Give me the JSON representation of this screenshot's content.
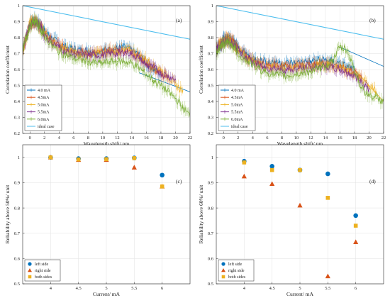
{
  "chart_data": [
    {
      "type": "line",
      "panel": "(a)",
      "xlabel": "Wavelength shift/ nm",
      "ylabel": "Correlation coefficient",
      "xlim": [
        -1,
        22
      ],
      "ylim": [
        0.2,
        1.0
      ],
      "xticks": [
        0,
        2,
        4,
        6,
        8,
        10,
        12,
        14,
        16,
        18,
        20,
        22
      ],
      "yticks": [
        0.2,
        0.3,
        0.4,
        0.5,
        0.6,
        0.7,
        0.8,
        0.9,
        1
      ],
      "grid": true,
      "error_bars": true,
      "legend_position": "bottom-left",
      "series": [
        {
          "name": "4.0 mA",
          "color": "#0072BD",
          "style": "solid",
          "x": [
            -1,
            -0.5,
            0,
            0.5,
            1,
            1.5,
            2,
            3,
            4,
            5,
            6,
            7,
            8,
            9,
            10,
            11,
            12,
            13,
            14,
            15,
            16,
            17,
            18
          ],
          "y": [
            0.72,
            0.8,
            0.89,
            0.91,
            0.9,
            0.87,
            0.84,
            0.8,
            0.76,
            0.74,
            0.73,
            0.72,
            0.72,
            0.71,
            0.72,
            0.73,
            0.73,
            0.74,
            0.72,
            0.69,
            0.64,
            0.6,
            0.57
          ]
        },
        {
          "name": "4.5mA",
          "color": "#D95319",
          "style": "solid",
          "x": [
            -1,
            -0.5,
            0,
            0.5,
            1,
            1.5,
            2,
            3,
            4,
            5,
            6,
            7,
            8,
            9,
            10,
            11,
            12,
            13,
            14,
            15,
            16,
            17,
            18,
            19
          ],
          "y": [
            0.72,
            0.8,
            0.89,
            0.9,
            0.89,
            0.86,
            0.83,
            0.78,
            0.75,
            0.73,
            0.72,
            0.71,
            0.7,
            0.7,
            0.71,
            0.72,
            0.72,
            0.72,
            0.71,
            0.68,
            0.64,
            0.6,
            0.57,
            0.55
          ]
        },
        {
          "name": "5.0mA",
          "color": "#EDB120",
          "style": "solid",
          "x": [
            -1,
            -0.5,
            0,
            0.5,
            1,
            1.5,
            2,
            3,
            4,
            5,
            6,
            7,
            8,
            9,
            10,
            11,
            12,
            13,
            14,
            15,
            16,
            17,
            18,
            19,
            20,
            21
          ],
          "y": [
            0.72,
            0.8,
            0.89,
            0.91,
            0.89,
            0.86,
            0.83,
            0.78,
            0.75,
            0.72,
            0.71,
            0.7,
            0.7,
            0.7,
            0.7,
            0.71,
            0.71,
            0.72,
            0.72,
            0.69,
            0.66,
            0.62,
            0.6,
            0.56,
            0.5,
            0.47
          ]
        },
        {
          "name": "5.5mA",
          "color": "#7E2F8E",
          "style": "solid",
          "x": [
            -1,
            -0.5,
            0,
            0.5,
            1,
            1.5,
            2,
            3,
            4,
            5,
            6,
            7,
            8,
            9,
            10,
            11,
            12,
            13,
            14,
            15,
            16,
            17,
            18,
            19,
            20
          ],
          "y": [
            0.72,
            0.8,
            0.88,
            0.9,
            0.89,
            0.86,
            0.82,
            0.77,
            0.74,
            0.71,
            0.7,
            0.69,
            0.69,
            0.69,
            0.69,
            0.7,
            0.7,
            0.71,
            0.7,
            0.67,
            0.63,
            0.61,
            0.58,
            0.56,
            0.54
          ]
        },
        {
          "name": "6.0mA",
          "color": "#77AC30",
          "style": "solid",
          "x": [
            -1,
            -0.5,
            0,
            0.5,
            1,
            1.5,
            2,
            3,
            4,
            5,
            6,
            7,
            8,
            9,
            10,
            11,
            12,
            13,
            14,
            15,
            16,
            17,
            18,
            19,
            20,
            21,
            22
          ],
          "y": [
            0.72,
            0.8,
            0.88,
            0.9,
            0.89,
            0.85,
            0.81,
            0.75,
            0.71,
            0.69,
            0.67,
            0.66,
            0.65,
            0.64,
            0.64,
            0.65,
            0.65,
            0.65,
            0.64,
            0.61,
            0.57,
            0.53,
            0.5,
            0.46,
            0.42,
            0.36,
            0.31
          ]
        },
        {
          "name": "ideal case",
          "color": "#4DBEEE",
          "style": "solid",
          "error_bars": false,
          "x": [
            -1,
            22
          ],
          "y": [
            1.0,
            0.79
          ]
        }
      ],
      "extra_lines": [
        {
          "color": "#0072BD",
          "x": [
            15,
            22
          ],
          "y": [
            0.58,
            0.46
          ]
        }
      ]
    },
    {
      "type": "line",
      "panel": "(b)",
      "xlabel": "Wavelength shift/ nm",
      "ylabel": "Correlation coefficient",
      "xlim": [
        -1,
        22
      ],
      "ylim": [
        0.2,
        1.0
      ],
      "xticks": [
        0,
        2,
        4,
        6,
        8,
        10,
        12,
        14,
        16,
        18,
        20,
        22
      ],
      "yticks": [
        0.2,
        0.3,
        0.4,
        0.5,
        0.6,
        0.7,
        0.8,
        0.9,
        1
      ],
      "grid": true,
      "error_bars": true,
      "legend_position": "bottom-left",
      "series": [
        {
          "name": "4.0 mA",
          "color": "#0072BD",
          "style": "solid",
          "x": [
            -1,
            -0.5,
            0,
            0.5,
            1,
            1.5,
            2,
            3,
            4,
            5,
            6,
            7,
            8,
            9,
            10,
            11,
            12,
            13,
            14,
            15,
            16,
            17,
            18
          ],
          "y": [
            0.73,
            0.76,
            0.79,
            0.8,
            0.79,
            0.77,
            0.74,
            0.7,
            0.67,
            0.66,
            0.65,
            0.65,
            0.64,
            0.64,
            0.64,
            0.65,
            0.65,
            0.66,
            0.66,
            0.65,
            0.64,
            0.62,
            0.6
          ]
        },
        {
          "name": "4.5mA",
          "color": "#D95319",
          "style": "solid",
          "x": [
            -1,
            -0.5,
            0,
            0.5,
            1,
            1.5,
            2,
            3,
            4,
            5,
            6,
            7,
            8,
            9,
            10,
            11,
            12,
            13,
            14,
            15,
            16,
            17,
            18,
            19
          ],
          "y": [
            0.73,
            0.76,
            0.78,
            0.79,
            0.78,
            0.76,
            0.73,
            0.69,
            0.66,
            0.64,
            0.63,
            0.63,
            0.62,
            0.62,
            0.62,
            0.63,
            0.63,
            0.64,
            0.64,
            0.63,
            0.62,
            0.6,
            0.58,
            0.55
          ]
        },
        {
          "name": "5.0mA",
          "color": "#EDB120",
          "style": "solid",
          "x": [
            -1,
            -0.5,
            0,
            0.5,
            1,
            1.5,
            2,
            3,
            4,
            5,
            6,
            7,
            8,
            9,
            10,
            11,
            12,
            13,
            14,
            15,
            16,
            17,
            18,
            19,
            20,
            21
          ],
          "y": [
            0.73,
            0.76,
            0.78,
            0.79,
            0.77,
            0.75,
            0.72,
            0.68,
            0.65,
            0.63,
            0.62,
            0.62,
            0.61,
            0.61,
            0.61,
            0.62,
            0.62,
            0.63,
            0.63,
            0.62,
            0.61,
            0.59,
            0.57,
            0.54,
            0.5,
            0.46
          ]
        },
        {
          "name": "5.5mA",
          "color": "#7E2F8E",
          "style": "solid",
          "x": [
            -1,
            -0.5,
            0,
            0.5,
            1,
            1.5,
            2,
            3,
            4,
            5,
            6,
            7,
            8,
            9,
            10,
            11,
            12,
            13,
            14,
            15,
            16,
            17,
            18,
            19,
            20
          ],
          "y": [
            0.73,
            0.75,
            0.77,
            0.78,
            0.77,
            0.75,
            0.72,
            0.68,
            0.65,
            0.62,
            0.61,
            0.61,
            0.6,
            0.6,
            0.6,
            0.61,
            0.61,
            0.62,
            0.62,
            0.61,
            0.6,
            0.58,
            0.56,
            0.52,
            0.48
          ]
        },
        {
          "name": "6.0mA",
          "color": "#77AC30",
          "style": "solid",
          "x": [
            -1,
            -0.5,
            0,
            0.5,
            1,
            1.5,
            2,
            3,
            4,
            5,
            6,
            7,
            8,
            9,
            10,
            11,
            12,
            13,
            14,
            15,
            16,
            17,
            18,
            19,
            20,
            21,
            22
          ],
          "y": [
            0.7,
            0.74,
            0.76,
            0.77,
            0.76,
            0.74,
            0.7,
            0.66,
            0.63,
            0.6,
            0.58,
            0.57,
            0.56,
            0.56,
            0.57,
            0.58,
            0.59,
            0.6,
            0.62,
            0.66,
            0.74,
            0.72,
            0.6,
            0.48,
            0.44,
            0.42,
            0.4
          ]
        },
        {
          "name": "ideal case",
          "color": "#4DBEEE",
          "style": "solid",
          "error_bars": false,
          "x": [
            -1,
            22
          ],
          "y": [
            1.0,
            0.79
          ]
        }
      ],
      "extra_lines": [
        {
          "color": "#0072BD",
          "x": [
            16,
            22
          ],
          "y": [
            0.74,
            0.62
          ]
        },
        {
          "color": "#EDB120",
          "x": [
            18,
            22
          ],
          "y": [
            0.6,
            0.4
          ]
        }
      ]
    },
    {
      "type": "scatter",
      "panel": "(c)",
      "xlabel": "Current/ mA",
      "ylabel": "Reliability above 50%/ unit",
      "xlim": [
        3.5,
        6.5
      ],
      "ylim": [
        0.5,
        1.05
      ],
      "xticks": [
        4,
        4.5,
        5,
        5.5,
        6
      ],
      "yticks": [
        0.5,
        0.6,
        0.7,
        0.8,
        0.9,
        1
      ],
      "grid": true,
      "legend_position": "bottom-left",
      "x": [
        4,
        4.5,
        5,
        5.5,
        6
      ],
      "series": [
        {
          "name": "left side",
          "marker": "circle",
          "color": "#0072BD",
          "values": [
            1.0,
            0.995,
            0.995,
            0.998,
            0.93
          ]
        },
        {
          "name": "right side",
          "marker": "triangle",
          "color": "#D95319",
          "values": [
            1.0,
            0.99,
            0.99,
            0.96,
            0.885
          ]
        },
        {
          "name": "both sides",
          "marker": "square",
          "color": "#EDB120",
          "values": [
            1.0,
            0.992,
            0.993,
            0.997,
            0.885
          ]
        }
      ]
    },
    {
      "type": "scatter",
      "panel": "(d)",
      "xlabel": "Current/ mA",
      "ylabel": "Reliability above 60%/ unit",
      "xlim": [
        3.5,
        6.5
      ],
      "ylim": [
        0.5,
        1.05
      ],
      "xticks": [
        4,
        4.5,
        5,
        5.5,
        6
      ],
      "yticks": [
        0.5,
        0.6,
        0.7,
        0.8,
        0.9,
        1
      ],
      "grid": true,
      "legend_position": "bottom-left",
      "x": [
        4,
        4.5,
        5,
        5.5,
        6
      ],
      "series": [
        {
          "name": "left side",
          "marker": "circle",
          "color": "#0072BD",
          "values": [
            0.985,
            0.965,
            0.95,
            0.935,
            0.77
          ]
        },
        {
          "name": "right side",
          "marker": "triangle",
          "color": "#D95319",
          "values": [
            0.925,
            0.895,
            0.81,
            0.53,
            0.665
          ]
        },
        {
          "name": "both sides",
          "marker": "square",
          "color": "#EDB120",
          "values": [
            0.98,
            0.95,
            0.95,
            0.84,
            0.73
          ]
        }
      ]
    }
  ]
}
